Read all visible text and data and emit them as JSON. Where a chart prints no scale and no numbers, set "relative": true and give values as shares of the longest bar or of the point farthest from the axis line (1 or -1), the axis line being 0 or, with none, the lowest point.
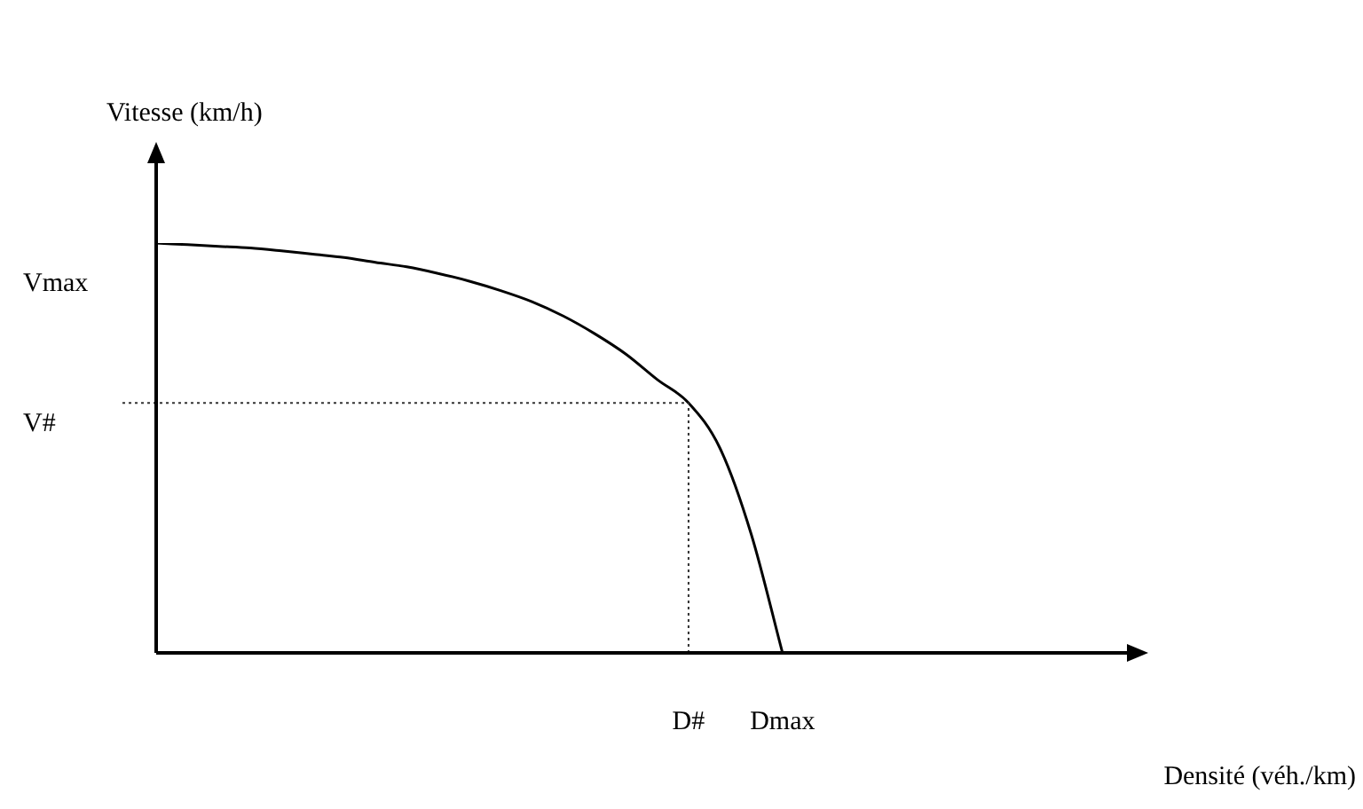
{
  "chart_data": {
    "type": "line",
    "relative": true,
    "xlabel": "Densité (véh./km)",
    "ylabel": "Vitesse (km/h)",
    "categories": [
      null,
      null,
      null,
      null,
      null,
      null,
      null,
      null,
      null,
      null,
      null,
      null,
      null,
      null,
      null,
      null,
      null,
      "D#",
      null,
      null,
      "Dmax",
      null,
      null,
      null,
      null,
      null,
      null,
      null,
      null,
      null,
      null,
      null
    ],
    "series": [
      {
        "color": "#000000",
        "values": [
          1.0,
          0.996,
          0.992,
          0.988,
          0.981,
          0.973,
          0.965,
          0.953,
          0.942,
          0.926,
          0.907,
          0.884,
          0.857,
          0.822,
          0.779,
          0.729,
          0.667,
          0.61,
          0.5,
          0.29,
          0,
          null,
          null,
          null,
          null,
          null,
          null,
          null,
          null,
          null,
          null,
          null
        ]
      }
    ],
    "ref_lines": [
      {
        "axis": "y",
        "value": 0.61,
        "label": "V#",
        "line_style": "dotted"
      },
      {
        "axis": "x",
        "value": "D#",
        "line_style": "dotted"
      }
    ],
    "annotations": [
      "Vmax"
    ],
    "marker": "none",
    "line_style": "solid",
    "grid": false,
    "legend": false
  }
}
